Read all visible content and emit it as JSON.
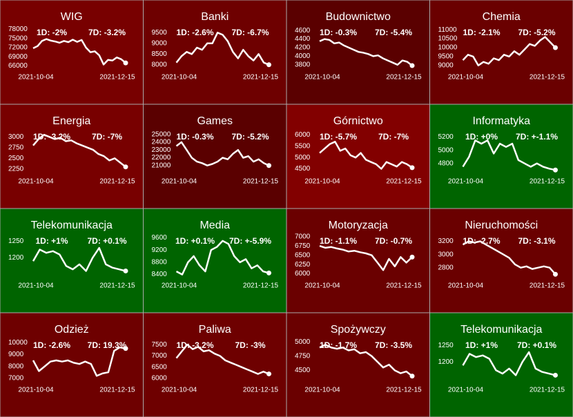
{
  "chart_data": [
    {
      "type": "line",
      "title": "WIG",
      "bg": "#780000",
      "color": "#ffffff",
      "annotations": [
        "1D: -2%",
        "7D: -3.2%"
      ],
      "x_labels": [
        "2021-10-04",
        "2021-12-15"
      ],
      "ylim": [
        65000,
        79000
      ],
      "yticks": [
        66000,
        69000,
        72000,
        75000,
        78000
      ],
      "values": [
        71800,
        72500,
        74200,
        74800,
        74300,
        74000,
        73600,
        74200,
        73800,
        74600,
        73900,
        74500,
        72000,
        70500,
        70800,
        69500,
        66500,
        68000,
        67800,
        68800,
        68200,
        67000
      ]
    },
    {
      "type": "line",
      "title": "Banki",
      "bg": "#6e0000",
      "color": "#ffffff",
      "annotations": [
        "1D: -2.6%",
        "7D: -6.7%"
      ],
      "x_labels": [
        "2021-10-04",
        "2021-12-15"
      ],
      "ylim": [
        7800,
        9800
      ],
      "yticks": [
        8000,
        8500,
        9000,
        9500
      ],
      "values": [
        8100,
        8400,
        8600,
        8500,
        8800,
        8700,
        9000,
        9000,
        9500,
        9400,
        9100,
        8600,
        8300,
        8700,
        8400,
        8200,
        8500,
        8100,
        8000
      ]
    },
    {
      "type": "line",
      "title": "Budownictwo",
      "bg": "#5a0000",
      "color": "#ffffff",
      "annotations": [
        "1D: -0.3%",
        "7D: -5.4%"
      ],
      "x_labels": [
        "2021-10-04",
        "2021-12-15"
      ],
      "ylim": [
        3700,
        4700
      ],
      "yticks": [
        3800,
        4000,
        4200,
        4400,
        4600
      ],
      "values": [
        4350,
        4400,
        4380,
        4300,
        4320,
        4250,
        4200,
        4150,
        4100,
        4080,
        4050,
        4000,
        4020,
        3950,
        3900,
        3850,
        3800,
        3900,
        3870,
        3780
      ]
    },
    {
      "type": "line",
      "title": "Chemia",
      "bg": "#6a0000",
      "color": "#ffffff",
      "annotations": [
        "1D: -2.1%",
        "7D: -5.2%"
      ],
      "x_labels": [
        "2021-10-04",
        "2021-12-15"
      ],
      "ylim": [
        8800,
        11200
      ],
      "yticks": [
        9000,
        9500,
        10000,
        10500,
        11000
      ],
      "values": [
        9300,
        9600,
        9500,
        9000,
        9200,
        9100,
        9400,
        9300,
        9600,
        9500,
        9800,
        9600,
        9900,
        10200,
        10100,
        10400,
        10600,
        10300,
        10000
      ]
    },
    {
      "type": "line",
      "title": "Energia",
      "bg": "#780000",
      "color": "#ffffff",
      "annotations": [
        "1D: -3.2%",
        "7D: -7%"
      ],
      "x_labels": [
        "2021-10-04",
        "2021-12-15"
      ],
      "ylim": [
        2150,
        3150
      ],
      "yticks": [
        2250,
        2500,
        2750,
        3000
      ],
      "values": [
        2800,
        2950,
        3050,
        3000,
        2950,
        2980,
        2900,
        2920,
        2850,
        2800,
        2750,
        2700,
        2600,
        2550,
        2450,
        2500,
        2400,
        2300
      ]
    },
    {
      "type": "line",
      "title": "Games",
      "bg": "#5a0000",
      "color": "#ffffff",
      "annotations": [
        "1D: -0.3%",
        "7D: -5.2%"
      ],
      "x_labels": [
        "2021-10-04",
        "2021-12-15"
      ],
      "ylim": [
        20000,
        25500
      ],
      "yticks": [
        21000,
        22000,
        23000,
        24000,
        25000
      ],
      "values": [
        23500,
        24000,
        23000,
        22000,
        21500,
        21300,
        21000,
        21200,
        21500,
        22000,
        21800,
        22500,
        23000,
        22000,
        22200,
        21500,
        21800,
        21300,
        21000
      ]
    },
    {
      "type": "line",
      "title": "Górnictwo",
      "bg": "#820000",
      "color": "#ffffff",
      "annotations": [
        "1D: -5.7%",
        "7D: -7%"
      ],
      "x_labels": [
        "2021-10-04",
        "2021-12-15"
      ],
      "ylim": [
        4300,
        6200
      ],
      "yticks": [
        4500,
        5000,
        5500,
        6000
      ],
      "values": [
        5200,
        5400,
        5600,
        5700,
        5300,
        5400,
        5100,
        5000,
        5200,
        4900,
        4800,
        4700,
        4500,
        4800,
        4700,
        4600,
        4800,
        4700,
        4550
      ]
    },
    {
      "type": "line",
      "title": "Informatyka",
      "bg": "#006400",
      "color": "#ffffff",
      "annotations": [
        "1D: +0%",
        "7D: +-1.1%"
      ],
      "x_labels": [
        "2021-10-04",
        "2021-12-15"
      ],
      "ylim": [
        4650,
        5300
      ],
      "yticks": [
        4800,
        5000,
        5200
      ],
      "values": [
        4750,
        4900,
        5150,
        5100,
        5150,
        4950,
        5100,
        5050,
        5100,
        4850,
        4800,
        4750,
        4800,
        4750,
        4720,
        4700
      ]
    },
    {
      "type": "line",
      "title": "Telekomunikacja",
      "bg": "#006400",
      "color": "#ffffff",
      "annotations": [
        "1D: +1%",
        "7D: +0.1%"
      ],
      "x_labels": [
        "2021-10-04",
        "2021-12-15"
      ],
      "ylim": [
        1140,
        1270
      ],
      "yticks": [
        1200,
        1250
      ],
      "values": [
        1190,
        1225,
        1215,
        1220,
        1210,
        1175,
        1165,
        1180,
        1160,
        1200,
        1230,
        1180,
        1170,
        1165,
        1160
      ]
    },
    {
      "type": "line",
      "title": "Media",
      "bg": "#006400",
      "color": "#ffffff",
      "annotations": [
        "1D: +0.1%",
        "7D: +-5.9%"
      ],
      "x_labels": [
        "2021-10-04",
        "2021-12-15"
      ],
      "ylim": [
        8300,
        9700
      ],
      "yticks": [
        8400,
        8800,
        9200,
        9600
      ],
      "values": [
        8500,
        8400,
        8800,
        9000,
        8700,
        8500,
        9200,
        9300,
        9500,
        9400,
        9000,
        8800,
        8900,
        8600,
        8700,
        8500,
        8450
      ]
    },
    {
      "type": "line",
      "title": "Motoryzacja",
      "bg": "#6a0000",
      "color": "#ffffff",
      "annotations": [
        "1D: -1.1%",
        "7D: -0.7%"
      ],
      "x_labels": [
        "2021-10-04",
        "2021-12-15"
      ],
      "ylim": [
        5900,
        7050
      ],
      "yticks": [
        6000,
        6250,
        6500,
        6750,
        7000
      ],
      "values": [
        6750,
        6700,
        6720,
        6680,
        6650,
        6600,
        6620,
        6580,
        6550,
        6500,
        6300,
        6100,
        6400,
        6200,
        6450,
        6300,
        6450
      ]
    },
    {
      "type": "line",
      "title": "Nieruchomości",
      "bg": "#6a0000",
      "color": "#ffffff",
      "annotations": [
        "1D: -2.7%",
        "7D: -3.1%"
      ],
      "x_labels": [
        "2021-10-04",
        "2021-12-15"
      ],
      "ylim": [
        2650,
        3300
      ],
      "yticks": [
        2800,
        3000,
        3200
      ],
      "values": [
        3150,
        3200,
        3180,
        3200,
        3150,
        3100,
        3050,
        3000,
        2950,
        2850,
        2800,
        2820,
        2780,
        2800,
        2820,
        2800,
        2700
      ]
    },
    {
      "type": "line",
      "title": "Odzież",
      "bg": "#6e0000",
      "color": "#ffffff",
      "annotations": [
        "1D: -2.6%",
        "7D: 19.3%"
      ],
      "x_labels": [
        "2021-10-04",
        "2021-12-15"
      ],
      "ylim": [
        6700,
        10300
      ],
      "yticks": [
        7000,
        8000,
        9000,
        10000
      ],
      "values": [
        8500,
        7600,
        8000,
        8400,
        8500,
        8400,
        8500,
        8300,
        8200,
        8400,
        8200,
        7200,
        7400,
        7500,
        9300,
        9600,
        9500
      ]
    },
    {
      "type": "line",
      "title": "Paliwa",
      "bg": "#6e0000",
      "color": "#ffffff",
      "annotations": [
        "1D: -3.2%",
        "7D: -3%"
      ],
      "x_labels": [
        "2021-10-04",
        "2021-12-15"
      ],
      "ylim": [
        5850,
        7750
      ],
      "yticks": [
        6000,
        6500,
        7000,
        7500
      ],
      "values": [
        6900,
        7200,
        7500,
        7300,
        7400,
        7200,
        7250,
        7100,
        7000,
        6800,
        6700,
        6600,
        6500,
        6400,
        6300,
        6200,
        6300,
        6200
      ]
    },
    {
      "type": "line",
      "title": "Spożywczy",
      "bg": "#6a0000",
      "color": "#ffffff",
      "annotations": [
        "1D: -1.7%",
        "7D: -3.5%"
      ],
      "x_labels": [
        "2021-10-04",
        "2021-12-15"
      ],
      "ylim": [
        4300,
        5050
      ],
      "yticks": [
        4500,
        4750,
        5000
      ],
      "values": [
        4900,
        4950,
        4900,
        4880,
        4900,
        4850,
        4870,
        4800,
        4820,
        4750,
        4650,
        4550,
        4600,
        4500,
        4450,
        4480,
        4400
      ]
    },
    {
      "type": "line",
      "title": "Telekomunikacja",
      "bg": "#006400",
      "color": "#ffffff",
      "annotations": [
        "1D: +1%",
        "7D: +0.1%"
      ],
      "x_labels": [
        "2021-10-04",
        "2021-12-15"
      ],
      "ylim": [
        1140,
        1270
      ],
      "yticks": [
        1200,
        1250
      ],
      "values": [
        1190,
        1225,
        1215,
        1220,
        1210,
        1175,
        1165,
        1180,
        1160,
        1200,
        1230,
        1180,
        1170,
        1165,
        1160
      ]
    }
  ]
}
